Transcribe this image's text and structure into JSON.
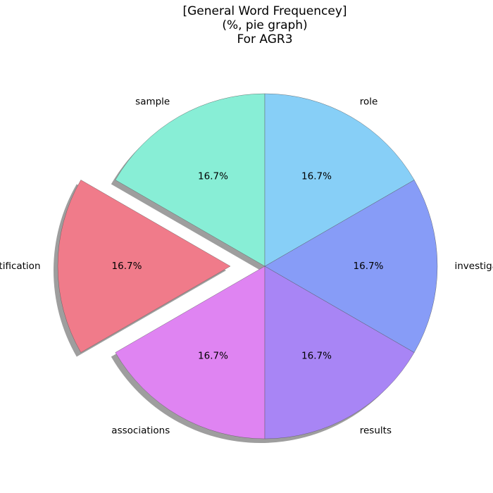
{
  "chart_data": {
    "type": "pie",
    "title_lines": [
      "[General Word Frequencey]",
      "(%, pie graph)",
      "For AGR3"
    ],
    "categories": [
      "sample",
      "Identification",
      "associations",
      "results",
      "investigation",
      "role"
    ],
    "values": [
      16.7,
      16.7,
      16.7,
      16.7,
      16.7,
      16.7
    ],
    "percent_labels": [
      "16.7%",
      "16.7%",
      "16.7%",
      "16.7%",
      "16.7%",
      "16.7%"
    ],
    "colors": [
      "#88eed6",
      "#f07b8a",
      "#df84f2",
      "#a885f5",
      "#879cf7",
      "#87cff7"
    ],
    "explode": [
      0,
      0.2,
      0,
      0,
      0,
      0
    ],
    "start_angle_deg": 90,
    "shadow": true,
    "legend": "none"
  }
}
